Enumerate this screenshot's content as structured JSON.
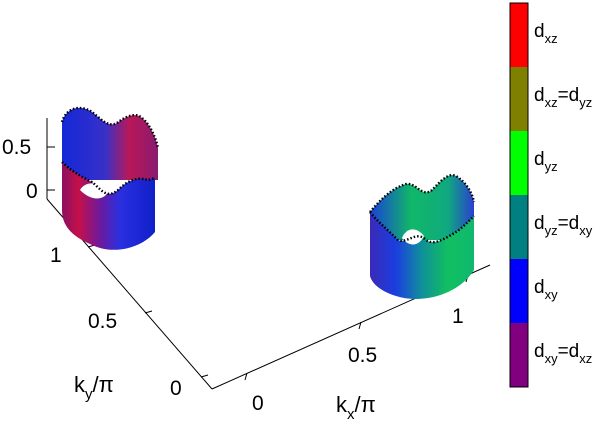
{
  "chart_data": {
    "type": "3d-surface",
    "axes": {
      "x": {
        "label_main": "k",
        "label_sub": "x",
        "label_tail": "/π",
        "ticks": [
          "0",
          "0.5",
          "1"
        ],
        "range": [
          0,
          1.2
        ]
      },
      "y": {
        "label_main": "k",
        "label_sub": "y",
        "label_tail": "/π",
        "ticks": [
          "0",
          "0.5",
          "1"
        ],
        "range": [
          0,
          1.2
        ]
      },
      "z": {
        "ticks": [
          "0",
          "0.5"
        ],
        "range": [
          0,
          0.8
        ]
      }
    },
    "surfaces": [
      {
        "name": "",
        "kx_center": 0,
        "ky_center": 1,
        "dominant_orbitals": [
          "d_xz",
          "d_xy"
        ]
      },
      {
        "name": "",
        "kx_center": 1,
        "ky_center": 0,
        "dominant_orbitals": [
          "d_yz",
          "d_xy"
        ]
      }
    ],
    "colorbar": {
      "position": "right",
      "entries": [
        {
          "main": "d",
          "sub": "xz",
          "extra": "",
          "extra_sub": "",
          "color": "#ff0000"
        },
        {
          "main": "d",
          "sub": "xz",
          "extra": "=d",
          "extra_sub": "yz",
          "color": "#808000"
        },
        {
          "main": "d",
          "sub": "yz",
          "extra": "",
          "extra_sub": "",
          "color": "#00ff00"
        },
        {
          "main": "d",
          "sub": "yz",
          "extra": "=d",
          "extra_sub": "xy",
          "color": "#008080"
        },
        {
          "main": "d",
          "sub": "xy",
          "extra": "",
          "extra_sub": "",
          "color": "#0000ff"
        },
        {
          "main": "d",
          "sub": "xy",
          "extra": "=d",
          "extra_sub": "xz",
          "color": "#800080"
        }
      ]
    }
  }
}
